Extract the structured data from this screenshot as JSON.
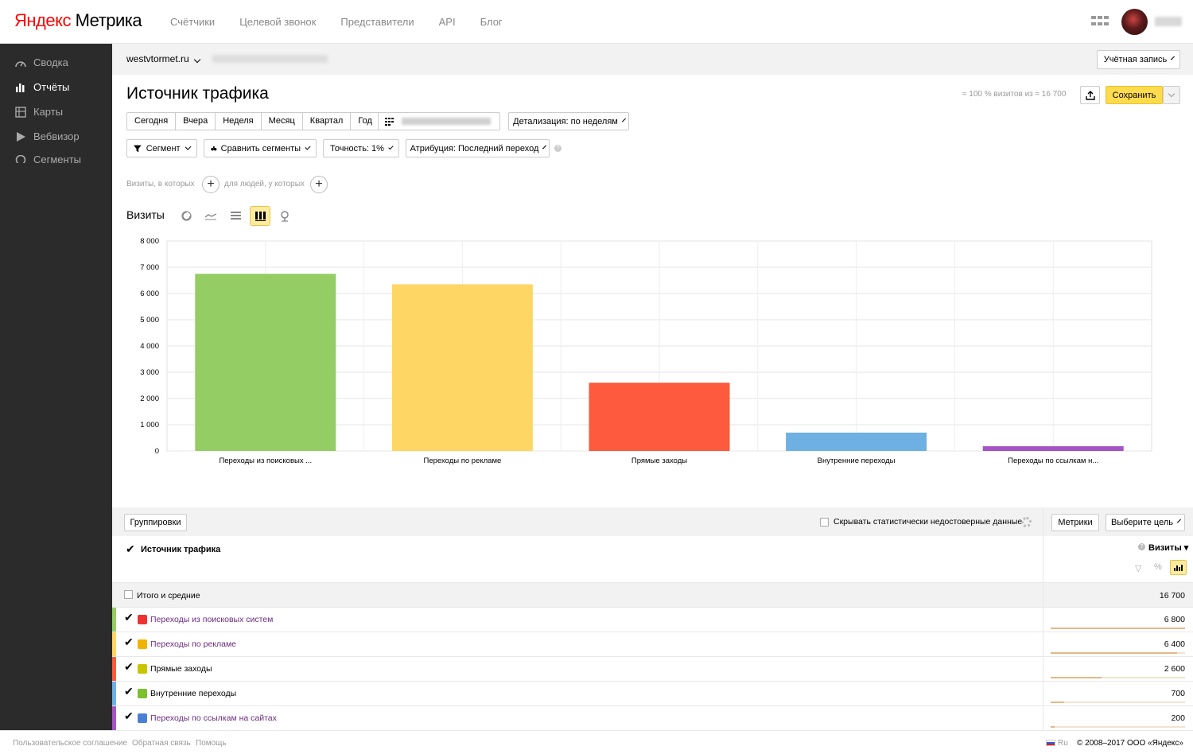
{
  "header": {
    "logo_brand": "Яндекс",
    "logo_product": "Метрика",
    "nav": [
      "Счётчики",
      "Целевой звонок",
      "Представители",
      "API",
      "Блог"
    ]
  },
  "sidebar": {
    "items": [
      {
        "label": "Сводка",
        "icon": "dashboard-icon",
        "active": false
      },
      {
        "label": "Отчёты",
        "icon": "bar-chart-icon",
        "active": true
      },
      {
        "label": "Карты",
        "icon": "map-icon",
        "active": false
      },
      {
        "label": "Вебвизор",
        "icon": "play-icon",
        "active": false
      },
      {
        "label": "Сегменты",
        "icon": "segments-icon",
        "active": false
      }
    ]
  },
  "counter": {
    "site": "westvtormet.ru",
    "account_button": "Учётная запись"
  },
  "report": {
    "title": "Источник трафика",
    "visits_info": "≈ 100 % визитов из ≈ 16 700",
    "save_label": "Сохранить",
    "periods": [
      "Сегодня",
      "Вчера",
      "Неделя",
      "Месяц",
      "Квартал",
      "Год"
    ],
    "detail_label": "Детализация: по неделям",
    "segment_label": "Сегмент",
    "compare_label": "Сравнить сегменты",
    "accuracy_label": "Точность: 1%",
    "attribution_label": "Атрибуция: Последний переход",
    "filter_visits": "Визиты, в которых",
    "filter_people": "для людей, у которых",
    "chart_metric": "Визиты"
  },
  "chart_data": {
    "type": "bar",
    "categories": [
      "Переходы из поисковых ...",
      "Переходы по рекламе",
      "Прямые заходы",
      "Внутренние переходы",
      "Переходы по ссылкам н..."
    ],
    "values": [
      6750,
      6350,
      2600,
      700,
      180
    ],
    "colors": [
      "#94cd63",
      "#fdd663",
      "#fd5a3e",
      "#6fb0e3",
      "#a355c4"
    ],
    "ylim": [
      0,
      8000
    ],
    "yticks": [
      "0",
      "1 000",
      "2 000",
      "3 000",
      "4 000",
      "5 000",
      "6 000",
      "7 000",
      "8 000"
    ],
    "grid": true
  },
  "table": {
    "groupings_label": "Группировки",
    "hide_unreliable_label": "Скрывать статистически недостоверные данные",
    "metrics_label": "Метрики",
    "goal_label": "Выберите цель",
    "dimension_header": "Источник трафика",
    "metric_header": "Визиты",
    "total_label": "Итого и средние",
    "total_value": "16 700",
    "rows": [
      {
        "label": "Переходы из поисковых систем",
        "value": "6 800",
        "share": 1.0,
        "color": "#94cd63",
        "icon_color": "#e33",
        "link": true
      },
      {
        "label": "Переходы по рекламе",
        "value": "6 400",
        "share": 0.94,
        "color": "#fdd663",
        "icon_color": "#f0b400",
        "link": true
      },
      {
        "label": "Прямые заходы",
        "value": "2 600",
        "share": 0.38,
        "color": "#fd5a3e",
        "icon_color": "#c9c400",
        "link": false
      },
      {
        "label": "Внутренние переходы",
        "value": "700",
        "share": 0.1,
        "color": "#6fb0e3",
        "icon_color": "#7cbf2f",
        "link": false
      },
      {
        "label": "Переходы по ссылкам на сайтах",
        "value": "200",
        "share": 0.03,
        "color": "#a355c4",
        "icon_color": "#4a7fd6",
        "link": true
      }
    ]
  },
  "footer": {
    "agreement": "Пользовательское соглашение",
    "feedback": "Обратная связь",
    "help": "Помощь",
    "lang": "Ru",
    "copyright": "© 2008–2017 ООО «Яндекс»"
  }
}
